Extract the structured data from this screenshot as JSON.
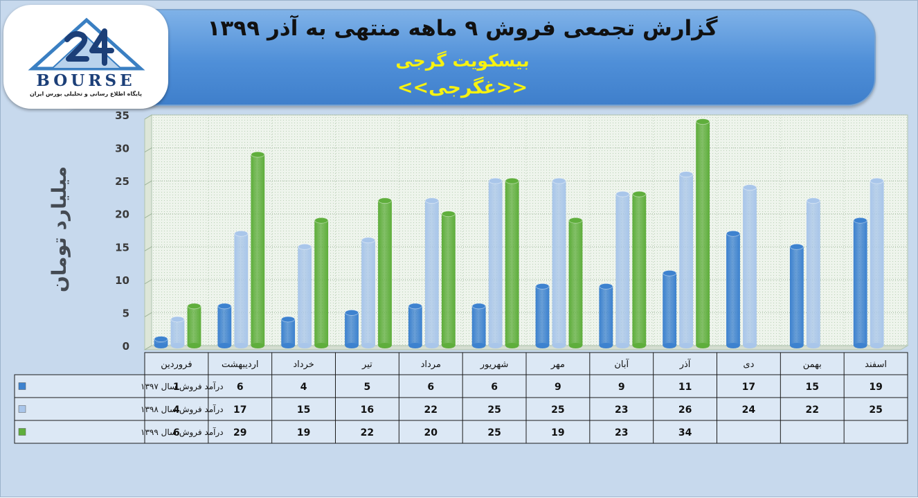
{
  "header": {
    "title": "گزارش تجمعی فروش ۹ ماهه منتهی به آذر ۱۳۹۹",
    "company": "بیسکویت گرجی",
    "ticker_open": "<<",
    "ticker": "غگرجی",
    "ticker_close": ">>"
  },
  "logo": {
    "icon": "24-mountain-logo-icon",
    "brand": "BOURSE",
    "tagline": "پایگاه اطلاع رسانی و تحلیلی بورس ایران",
    "brand_color": "#1c3f78"
  },
  "chart_data": {
    "type": "bar",
    "title": "گزارش تجمعی فروش ۹ ماهه منتهی به آذر ۱۳۹۹",
    "subtitle": "بیسکویت گرجی",
    "ylabel": "میلیارد تومان",
    "xlabel": "",
    "ylim": [
      0,
      35
    ],
    "yticks": [
      0,
      5,
      10,
      15,
      20,
      25,
      30,
      35
    ],
    "grid": true,
    "legend_placement": "data-table-left",
    "categories": [
      "فروردین",
      "اردیبهشت",
      "خرداد",
      "تیر",
      "مرداد",
      "شهریور",
      "مهر",
      "آبان",
      "آذر",
      "دی",
      "بهمن",
      "اسفند"
    ],
    "series": [
      {
        "name": "درآمد فروش سال ۱۳۹۷",
        "color": "#3d82cf",
        "values": [
          1,
          6,
          4,
          5,
          6,
          6,
          9,
          9,
          11,
          17,
          15,
          19
        ]
      },
      {
        "name": "درآمد فروش سال ۱۳۹۸",
        "color": "#a9c6ea",
        "values": [
          4,
          17,
          15,
          16,
          22,
          25,
          25,
          23,
          26,
          24,
          22,
          25
        ]
      },
      {
        "name": "درآمد فروش سال ۱۳۹۹",
        "color": "#5fae3c",
        "values": [
          6,
          29,
          19,
          22,
          20,
          25,
          19,
          23,
          34,
          null,
          null,
          null
        ]
      }
    ]
  }
}
